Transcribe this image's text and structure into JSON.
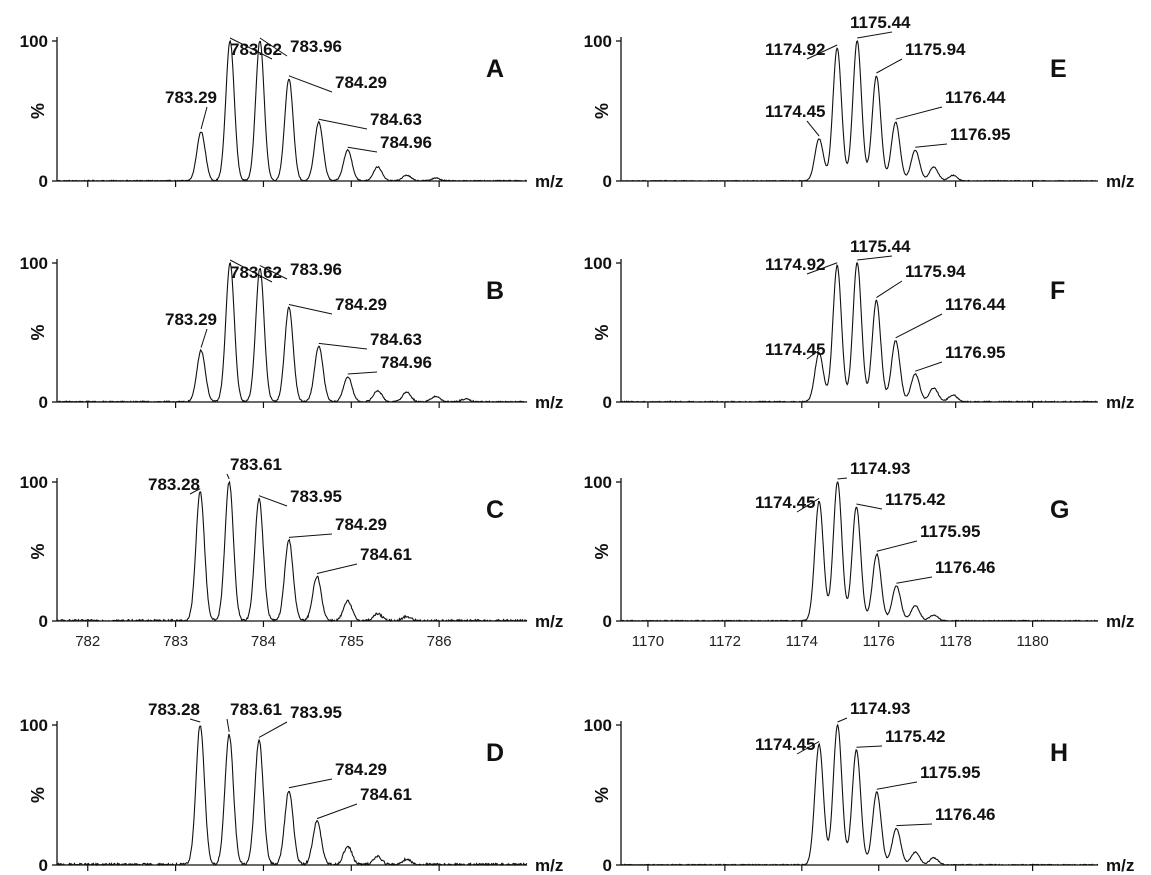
{
  "figure": {
    "x_unit": "m/z",
    "y_unit": "%"
  },
  "chart_data": [
    {
      "panel": "A",
      "type": "line",
      "xlim": [
        781.65,
        787.0
      ],
      "ylim": [
        0,
        100
      ],
      "yticks": [
        0,
        100
      ],
      "ytick_labels": [
        "0",
        "100"
      ],
      "xticks": [
        782,
        783,
        784,
        785,
        786
      ],
      "xtick_labels": [],
      "xlabel": "m/z",
      "ylabel": "%",
      "peaks": [
        {
          "x": 783.29,
          "y": 35,
          "label": "783.29"
        },
        {
          "x": 783.62,
          "y": 100,
          "label": "783.62"
        },
        {
          "x": 783.96,
          "y": 100,
          "label": "783.96"
        },
        {
          "x": 784.29,
          "y": 73,
          "label": "784.29"
        },
        {
          "x": 784.63,
          "y": 42,
          "label": "784.63"
        },
        {
          "x": 784.96,
          "y": 22,
          "label": "784.96"
        },
        {
          "x": 785.3,
          "y": 10
        },
        {
          "x": 785.63,
          "y": 4
        },
        {
          "x": 785.96,
          "y": 2
        }
      ],
      "noise": 0.8
    },
    {
      "panel": "B",
      "type": "line",
      "xlim": [
        781.65,
        787.0
      ],
      "ylim": [
        0,
        100
      ],
      "yticks": [
        0,
        100
      ],
      "ytick_labels": [
        "0",
        "100"
      ],
      "xticks": [
        782,
        783,
        784,
        785,
        786
      ],
      "xtick_labels": [],
      "xlabel": "m/z",
      "ylabel": "%",
      "peaks": [
        {
          "x": 783.29,
          "y": 37,
          "label": "783.29"
        },
        {
          "x": 783.62,
          "y": 100,
          "label": "783.62"
        },
        {
          "x": 783.96,
          "y": 96,
          "label": "783.96"
        },
        {
          "x": 784.29,
          "y": 68,
          "label": "784.29"
        },
        {
          "x": 784.63,
          "y": 40,
          "label": "784.63"
        },
        {
          "x": 784.96,
          "y": 18,
          "label": "784.96"
        },
        {
          "x": 785.3,
          "y": 8
        },
        {
          "x": 785.63,
          "y": 7
        },
        {
          "x": 785.96,
          "y": 4
        },
        {
          "x": 786.3,
          "y": 2
        }
      ],
      "noise": 1.0
    },
    {
      "panel": "C",
      "type": "line",
      "xlim": [
        781.65,
        787.0
      ],
      "ylim": [
        0,
        100
      ],
      "yticks": [
        0,
        100
      ],
      "ytick_labels": [
        "0",
        "100"
      ],
      "xticks": [
        782,
        783,
        784,
        785,
        786
      ],
      "xtick_labels": [
        "782",
        "783",
        "784",
        "785",
        "786"
      ],
      "xlabel": "m/z",
      "ylabel": "%",
      "peaks": [
        {
          "x": 783.28,
          "y": 93,
          "label": "783.28"
        },
        {
          "x": 783.61,
          "y": 100,
          "label": "783.61"
        },
        {
          "x": 783.95,
          "y": 88,
          "label": "783.95"
        },
        {
          "x": 784.29,
          "y": 58,
          "label": "784.29"
        },
        {
          "x": 784.61,
          "y": 32,
          "label": "784.61"
        },
        {
          "x": 784.96,
          "y": 14
        },
        {
          "x": 785.3,
          "y": 5
        },
        {
          "x": 785.63,
          "y": 3
        }
      ],
      "noise": 1.6
    },
    {
      "panel": "D",
      "type": "line",
      "xlim": [
        781.65,
        787.0
      ],
      "ylim": [
        0,
        100
      ],
      "yticks": [
        0,
        100
      ],
      "ytick_labels": [
        "0",
        "100"
      ],
      "xticks": [
        782,
        783,
        784,
        785,
        786
      ],
      "xtick_labels": [],
      "xlabel": "m/z",
      "ylabel": "%",
      "peaks": [
        {
          "x": 783.28,
          "y": 100,
          "label": "783.28"
        },
        {
          "x": 783.61,
          "y": 93,
          "label": "783.61"
        },
        {
          "x": 783.95,
          "y": 89,
          "label": "783.95"
        },
        {
          "x": 784.29,
          "y": 53,
          "label": "784.29"
        },
        {
          "x": 784.61,
          "y": 31,
          "label": "784.61"
        },
        {
          "x": 784.96,
          "y": 13
        },
        {
          "x": 785.3,
          "y": 6
        },
        {
          "x": 785.63,
          "y": 4
        }
      ],
      "noise": 1.8
    },
    {
      "panel": "E",
      "type": "line",
      "xlim": [
        1169.3,
        1181.7
      ],
      "ylim": [
        0,
        100
      ],
      "yticks": [
        0,
        100
      ],
      "ytick_labels": [
        "0",
        "100"
      ],
      "xticks": [
        1170,
        1172,
        1174,
        1176,
        1178,
        1180
      ],
      "xtick_labels": [],
      "xlabel": "m/z",
      "ylabel": "%",
      "peaks": [
        {
          "x": 1174.45,
          "y": 30,
          "label": "1174.45"
        },
        {
          "x": 1174.92,
          "y": 95,
          "label": "1174.92"
        },
        {
          "x": 1175.44,
          "y": 100,
          "label": "1175.44"
        },
        {
          "x": 1175.94,
          "y": 75,
          "label": "1175.94"
        },
        {
          "x": 1176.44,
          "y": 42,
          "label": "1176.44"
        },
        {
          "x": 1176.95,
          "y": 22,
          "label": "1176.95"
        },
        {
          "x": 1177.43,
          "y": 10
        },
        {
          "x": 1177.93,
          "y": 4
        }
      ],
      "noise": 0.6
    },
    {
      "panel": "F",
      "type": "line",
      "xlim": [
        1169.3,
        1181.7
      ],
      "ylim": [
        0,
        100
      ],
      "yticks": [
        0,
        100
      ],
      "ytick_labels": [
        "0",
        "100"
      ],
      "xticks": [
        1170,
        1172,
        1174,
        1176,
        1178,
        1180
      ],
      "xtick_labels": [],
      "xlabel": "m/z",
      "ylabel": "%",
      "peaks": [
        {
          "x": 1174.45,
          "y": 35,
          "label": "1174.45"
        },
        {
          "x": 1174.92,
          "y": 98,
          "label": "1174.92"
        },
        {
          "x": 1175.44,
          "y": 100,
          "label": "1175.44"
        },
        {
          "x": 1175.94,
          "y": 73,
          "label": "1175.94"
        },
        {
          "x": 1176.44,
          "y": 44,
          "label": "1176.44"
        },
        {
          "x": 1176.95,
          "y": 20,
          "label": "1176.95"
        },
        {
          "x": 1177.43,
          "y": 10
        },
        {
          "x": 1177.93,
          "y": 5
        }
      ],
      "noise": 0.9
    },
    {
      "panel": "G",
      "type": "line",
      "xlim": [
        1169.3,
        1181.7
      ],
      "ylim": [
        0,
        100
      ],
      "yticks": [
        0,
        100
      ],
      "ytick_labels": [
        "0",
        "100"
      ],
      "xticks": [
        1170,
        1172,
        1174,
        1176,
        1178,
        1180
      ],
      "xtick_labels": [
        "1170",
        "1172",
        "1174",
        "1176",
        "1178",
        "1180"
      ],
      "xlabel": "m/z",
      "ylabel": "%",
      "peaks": [
        {
          "x": 1174.45,
          "y": 86,
          "label": "1174.45"
        },
        {
          "x": 1174.93,
          "y": 100,
          "label": "1174.93"
        },
        {
          "x": 1175.42,
          "y": 82,
          "label": "1175.42"
        },
        {
          "x": 1175.95,
          "y": 48,
          "label": "1175.95"
        },
        {
          "x": 1176.46,
          "y": 25,
          "label": "1176.46"
        },
        {
          "x": 1176.95,
          "y": 11
        },
        {
          "x": 1177.43,
          "y": 4
        }
      ],
      "noise": 0.8
    },
    {
      "panel": "H",
      "type": "line",
      "xlim": [
        1169.3,
        1181.7
      ],
      "ylim": [
        0,
        100
      ],
      "yticks": [
        0,
        100
      ],
      "ytick_labels": [
        "0",
        "100"
      ],
      "xticks": [
        1170,
        1172,
        1174,
        1176,
        1178,
        1180
      ],
      "xtick_labels": [],
      "xlabel": "m/z",
      "ylabel": "%",
      "peaks": [
        {
          "x": 1174.45,
          "y": 86,
          "label": "1174.45"
        },
        {
          "x": 1174.93,
          "y": 100,
          "label": "1174.93"
        },
        {
          "x": 1175.42,
          "y": 82,
          "label": "1175.42"
        },
        {
          "x": 1175.95,
          "y": 52,
          "label": "1175.95"
        },
        {
          "x": 1176.46,
          "y": 26,
          "label": "1176.46"
        },
        {
          "x": 1176.95,
          "y": 9
        },
        {
          "x": 1177.43,
          "y": 5
        }
      ],
      "noise": 0.8
    }
  ]
}
